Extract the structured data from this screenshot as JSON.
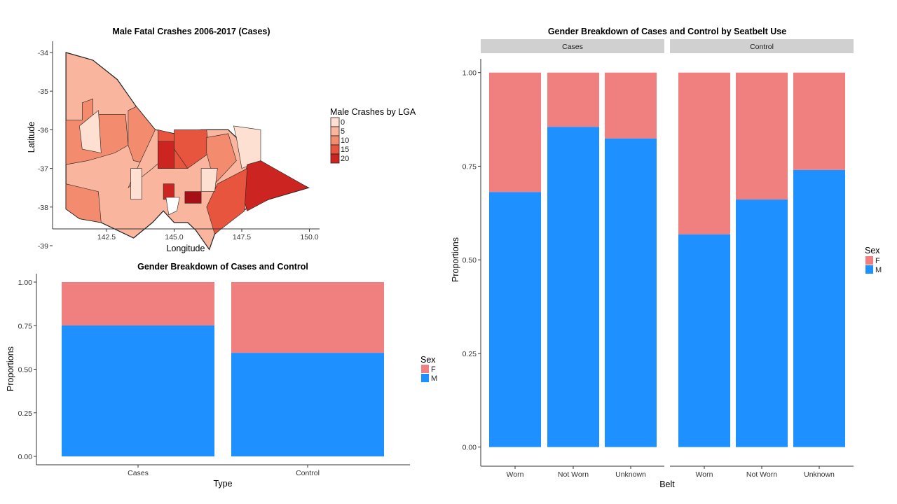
{
  "colors": {
    "F": "#F08080",
    "M": "#1E90FF",
    "strip": "#D0D0D0",
    "axis": "#333333"
  },
  "chart_data": [
    {
      "type": "choropleth",
      "title": "Male Fatal Crashes 2006-2017 (Cases)",
      "xlabel": "Longitude",
      "ylabel": "Latitude",
      "xticks": [
        "142.5",
        "145.0",
        "147.5",
        "150.0"
      ],
      "yticks": [
        "-34",
        "-35",
        "-36",
        "-37",
        "-38",
        "-39"
      ],
      "legend": {
        "title": "Male Crashes by LGA",
        "position": "right",
        "items": [
          {
            "label": "0",
            "color": "#FEE0D2"
          },
          {
            "label": "5",
            "color": "#F9B59E"
          },
          {
            "label": "10",
            "color": "#F38B6F"
          },
          {
            "label": "15",
            "color": "#E8553F"
          },
          {
            "label": "20",
            "color": "#CB2421"
          }
        ]
      }
    },
    {
      "type": "bar",
      "stacked": true,
      "title": "Gender Breakdown of Cases and Control",
      "xlabel": "Type",
      "ylabel": "Proportions",
      "ylim": [
        0,
        1
      ],
      "yticks": [
        "0.00",
        "0.25",
        "0.50",
        "0.75",
        "1.00"
      ],
      "categories": [
        "Cases",
        "Control"
      ],
      "series": [
        {
          "name": "M",
          "values": [
            0.751,
            0.594
          ]
        },
        {
          "name": "F",
          "values": [
            0.249,
            0.406
          ]
        }
      ],
      "legend": {
        "title": "Sex",
        "position": "right",
        "items": [
          "F",
          "M"
        ]
      }
    },
    {
      "type": "bar",
      "stacked": true,
      "title": "Gender Breakdown of Cases and Control by Seatbelt Use",
      "xlabel": "Belt",
      "ylabel": "Proportions",
      "ylim": [
        0,
        1
      ],
      "yticks": [
        "0.00",
        "0.25",
        "0.50",
        "0.75",
        "1.00"
      ],
      "facets": [
        {
          "label": "Cases",
          "categories": [
            "Worn",
            "Not Worn",
            "Unknown"
          ],
          "series": [
            {
              "name": "M",
              "values": [
                0.681,
                0.855,
                0.824
              ]
            },
            {
              "name": "F",
              "values": [
                0.319,
                0.145,
                0.176
              ]
            }
          ]
        },
        {
          "label": "Control",
          "categories": [
            "Worn",
            "Not Worn",
            "Unknown"
          ],
          "series": [
            {
              "name": "M",
              "values": [
                0.568,
                0.661,
                0.74
              ]
            },
            {
              "name": "F",
              "values": [
                0.432,
                0.339,
                0.26
              ]
            }
          ]
        }
      ],
      "legend": {
        "title": "Sex",
        "position": "right",
        "items": [
          "F",
          "M"
        ]
      }
    }
  ]
}
